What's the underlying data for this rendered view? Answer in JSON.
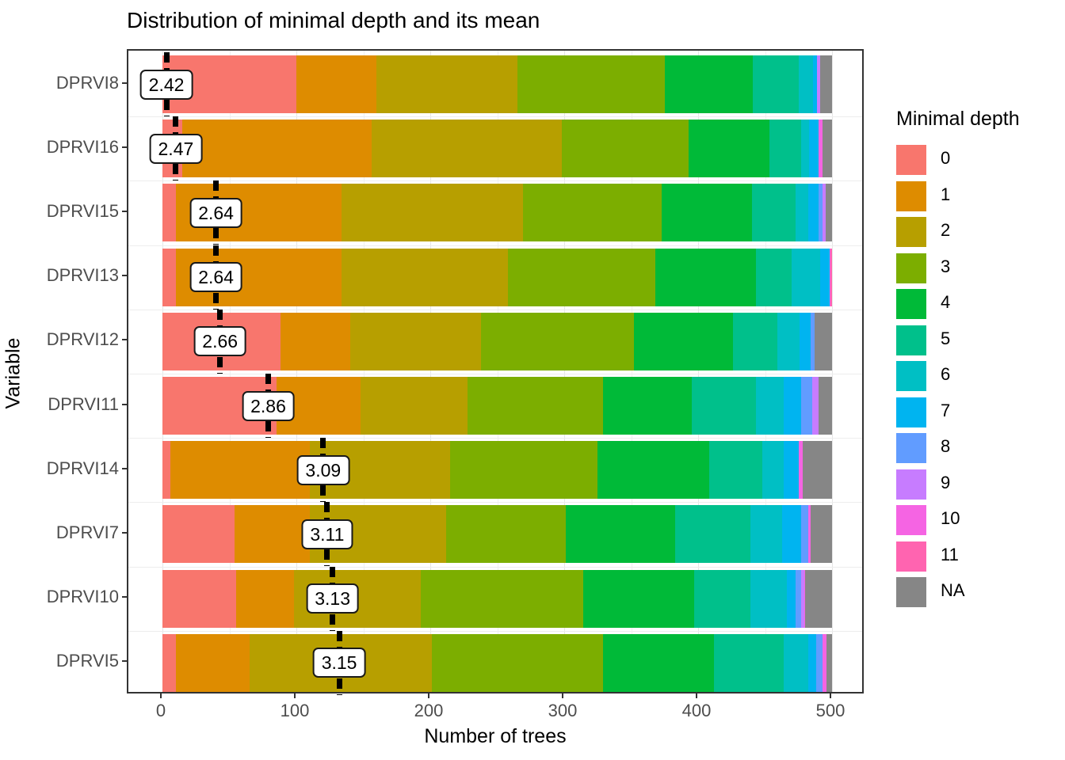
{
  "title": "Distribution of minimal depth and its mean",
  "x_axis": {
    "title": "Number of trees",
    "tick_labels": [
      "0",
      "100",
      "200",
      "300",
      "400",
      "500"
    ],
    "tick_values": [
      0,
      100,
      200,
      300,
      400,
      500
    ],
    "minor_tick_values": [
      50,
      150,
      250,
      350,
      450
    ],
    "range": [
      -25,
      525
    ]
  },
  "y_axis": {
    "title": "Variable"
  },
  "legend": {
    "title": "Minimal depth",
    "entries": [
      {
        "label": "0",
        "color": "#F8766D"
      },
      {
        "label": "1",
        "color": "#DE8C00"
      },
      {
        "label": "2",
        "color": "#B79F00"
      },
      {
        "label": "3",
        "color": "#7CAE00"
      },
      {
        "label": "4",
        "color": "#00BA38"
      },
      {
        "label": "5",
        "color": "#00C08B"
      },
      {
        "label": "6",
        "color": "#00BFC4"
      },
      {
        "label": "7",
        "color": "#00B4F0"
      },
      {
        "label": "8",
        "color": "#619CFF"
      },
      {
        "label": "9",
        "color": "#C77CFF"
      },
      {
        "label": "10",
        "color": "#F564E3"
      },
      {
        "label": "11",
        "color": "#FF64B0"
      },
      {
        "label": "NA",
        "color": "#868686"
      }
    ]
  },
  "chart_data": {
    "type": "bar",
    "orientation": "horizontal",
    "stacked": true,
    "title": "Distribution of minimal depth and its mean",
    "xlabel": "Number of trees",
    "ylabel": "Variable",
    "xlim": [
      -25,
      525
    ],
    "total_trees_per_bar": 500,
    "legend_title": "Minimal depth",
    "depth_levels": [
      "0",
      "1",
      "2",
      "3",
      "4",
      "5",
      "6",
      "7",
      "8",
      "9",
      "10",
      "11",
      "NA"
    ],
    "bars": [
      {
        "variable": "DPRVI8",
        "mean": 2.42,
        "mean_label": "2.42",
        "mean_marker_x": 3,
        "segments": [
          [
            "0",
            100
          ],
          [
            "1",
            60
          ],
          [
            "2",
            105
          ],
          [
            "3",
            110
          ],
          [
            "4",
            66
          ],
          [
            "5",
            34
          ],
          [
            "6",
            11
          ],
          [
            "7",
            3
          ],
          [
            "9",
            2
          ],
          [
            "NA",
            9
          ]
        ]
      },
      {
        "variable": "DPRVI16",
        "mean": 2.47,
        "mean_label": "2.47",
        "mean_marker_x": 10,
        "segments": [
          [
            "0",
            15
          ],
          [
            "1",
            141
          ],
          [
            "2",
            142
          ],
          [
            "3",
            95
          ],
          [
            "4",
            60
          ],
          [
            "5",
            24
          ],
          [
            "6",
            6
          ],
          [
            "7",
            7
          ],
          [
            "10",
            3
          ],
          [
            "NA",
            7
          ]
        ]
      },
      {
        "variable": "DPRVI15",
        "mean": 2.64,
        "mean_label": "2.64",
        "mean_marker_x": 40,
        "segments": [
          [
            "0",
            10
          ],
          [
            "1",
            124
          ],
          [
            "2",
            135
          ],
          [
            "3",
            104
          ],
          [
            "4",
            67
          ],
          [
            "5",
            33
          ],
          [
            "6",
            9
          ],
          [
            "7",
            8
          ],
          [
            "8",
            3
          ],
          [
            "9",
            2
          ],
          [
            "NA",
            5
          ]
        ]
      },
      {
        "variable": "DPRVI13",
        "mean": 2.64,
        "mean_label": "2.64",
        "mean_marker_x": 40,
        "segments": [
          [
            "0",
            10
          ],
          [
            "1",
            124
          ],
          [
            "2",
            124
          ],
          [
            "3",
            110
          ],
          [
            "4",
            75
          ],
          [
            "5",
            27
          ],
          [
            "6",
            21
          ],
          [
            "7",
            7
          ],
          [
            "10",
            1
          ],
          [
            "11",
            1
          ]
        ]
      },
      {
        "variable": "DPRVI12",
        "mean": 2.66,
        "mean_label": "2.66",
        "mean_marker_x": 43,
        "segments": [
          [
            "0",
            88
          ],
          [
            "1",
            52
          ],
          [
            "2",
            98
          ],
          [
            "3",
            114
          ],
          [
            "4",
            74
          ],
          [
            "5",
            33
          ],
          [
            "6",
            17
          ],
          [
            "7",
            8
          ],
          [
            "8",
            3
          ],
          [
            "NA",
            13
          ]
        ]
      },
      {
        "variable": "DPRVI11",
        "mean": 2.86,
        "mean_label": "2.86",
        "mean_marker_x": 79,
        "segments": [
          [
            "0",
            85
          ],
          [
            "1",
            63
          ],
          [
            "2",
            80
          ],
          [
            "3",
            101
          ],
          [
            "4",
            66
          ],
          [
            "5",
            48
          ],
          [
            "6",
            21
          ],
          [
            "7",
            13
          ],
          [
            "8",
            8
          ],
          [
            "9",
            5
          ],
          [
            "NA",
            10
          ]
        ]
      },
      {
        "variable": "DPRVI14",
        "mean": 3.09,
        "mean_label": "3.09",
        "mean_marker_x": 120,
        "segments": [
          [
            "0",
            6
          ],
          [
            "1",
            104
          ],
          [
            "2",
            105
          ],
          [
            "3",
            110
          ],
          [
            "4",
            83
          ],
          [
            "5",
            40
          ],
          [
            "6",
            16
          ],
          [
            "7",
            11
          ],
          [
            "10",
            3
          ],
          [
            "NA",
            22
          ]
        ]
      },
      {
        "variable": "DPRVI7",
        "mean": 3.11,
        "mean_label": "3.11",
        "mean_marker_x": 123,
        "segments": [
          [
            "0",
            54
          ],
          [
            "1",
            56
          ],
          [
            "2",
            102
          ],
          [
            "3",
            89
          ],
          [
            "4",
            82
          ],
          [
            "5",
            56
          ],
          [
            "6",
            24
          ],
          [
            "7",
            14
          ],
          [
            "8",
            5
          ],
          [
            "10",
            2
          ],
          [
            "NA",
            16
          ]
        ]
      },
      {
        "variable": "DPRVI10",
        "mean": 3.13,
        "mean_label": "3.13",
        "mean_marker_x": 127,
        "segments": [
          [
            "0",
            55
          ],
          [
            "1",
            43
          ],
          [
            "2",
            95
          ],
          [
            "3",
            121
          ],
          [
            "4",
            83
          ],
          [
            "5",
            42
          ],
          [
            "6",
            27
          ],
          [
            "7",
            7
          ],
          [
            "8",
            4
          ],
          [
            "9",
            2
          ],
          [
            "10",
            1
          ],
          [
            "NA",
            20
          ]
        ]
      },
      {
        "variable": "DPRVI5",
        "mean": 3.15,
        "mean_label": "3.15",
        "mean_marker_x": 132,
        "segments": [
          [
            "0",
            10
          ],
          [
            "1",
            55
          ],
          [
            "2",
            136
          ],
          [
            "3",
            128
          ],
          [
            "4",
            83
          ],
          [
            "5",
            52
          ],
          [
            "6",
            18
          ],
          [
            "7",
            6
          ],
          [
            "8",
            5
          ],
          [
            "10",
            3
          ],
          [
            "NA",
            4
          ]
        ]
      }
    ]
  }
}
